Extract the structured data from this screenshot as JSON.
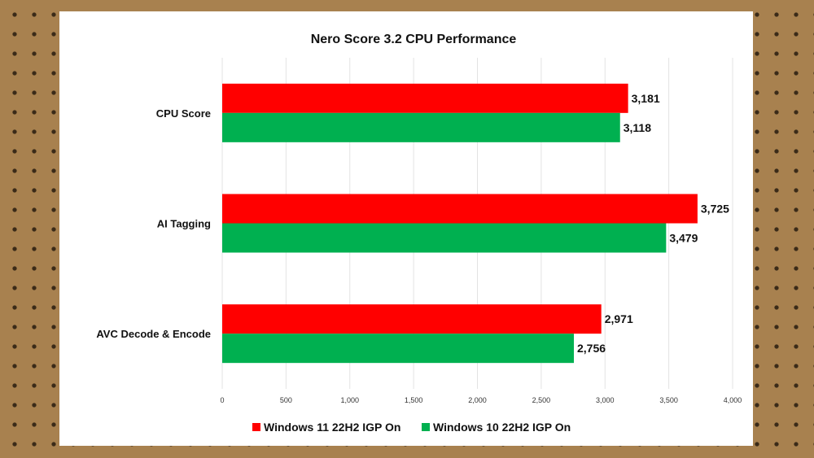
{
  "chart_data": {
    "type": "bar",
    "orientation": "horizontal",
    "title": "Nero Score 3.2 CPU Performance",
    "categories": [
      "CPU Score",
      "AI Tagging",
      "AVC Decode & Encode"
    ],
    "series": [
      {
        "name": "Windows 11 22H2 IGP On",
        "color": "#ff0000",
        "values": [
          3181,
          3725,
          2971
        ],
        "labels": [
          "3,181",
          "3,725",
          "2,971"
        ]
      },
      {
        "name": "Windows 10 22H2 IGP On",
        "color": "#00b050",
        "values": [
          3118,
          3479,
          2756
        ],
        "labels": [
          "3,118",
          "3,479",
          "2,756"
        ]
      }
    ],
    "xlim": [
      0,
      4000
    ],
    "xticks": [
      0,
      500,
      1000,
      1500,
      2000,
      2500,
      3000,
      3500,
      4000
    ],
    "xtick_labels": [
      "0",
      "500",
      "1,000",
      "1,500",
      "2,000",
      "2,500",
      "3,000",
      "3,500",
      "4,000"
    ],
    "grid": true,
    "legend": "bottom"
  }
}
